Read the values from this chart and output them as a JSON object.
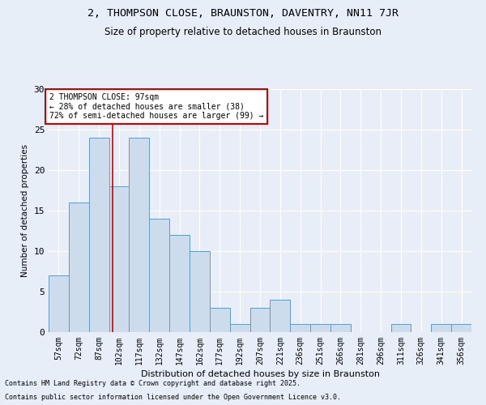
{
  "title_line1": "2, THOMPSON CLOSE, BRAUNSTON, DAVENTRY, NN11 7JR",
  "title_line2": "Size of property relative to detached houses in Braunston",
  "xlabel": "Distribution of detached houses by size in Braunston",
  "ylabel": "Number of detached properties",
  "categories": [
    "57sqm",
    "72sqm",
    "87sqm",
    "102sqm",
    "117sqm",
    "132sqm",
    "147sqm",
    "162sqm",
    "177sqm",
    "192sqm",
    "207sqm",
    "221sqm",
    "236sqm",
    "251sqm",
    "266sqm",
    "281sqm",
    "296sqm",
    "311sqm",
    "326sqm",
    "341sqm",
    "356sqm"
  ],
  "values": [
    7,
    16,
    24,
    18,
    24,
    14,
    12,
    10,
    3,
    1,
    3,
    4,
    1,
    1,
    1,
    0,
    0,
    1,
    0,
    1,
    1
  ],
  "bar_color": "#ccdcec",
  "bar_edge_color": "#6699bb",
  "background_color": "#e8eef8",
  "grid_color": "#ffffff",
  "red_line_x": 2.67,
  "annotation_text": "2 THOMPSON CLOSE: 97sqm\n← 28% of detached houses are smaller (38)\n72% of semi-detached houses are larger (99) →",
  "annotation_box_color": "#ffffff",
  "annotation_box_edge": "#cc0000",
  "red_line_color": "#cc0000",
  "ylim": [
    0,
    30
  ],
  "yticks": [
    0,
    5,
    10,
    15,
    20,
    25,
    30
  ],
  "footer_line1": "Contains HM Land Registry data © Crown copyright and database right 2025.",
  "footer_line2": "Contains public sector information licensed under the Open Government Licence v3.0."
}
